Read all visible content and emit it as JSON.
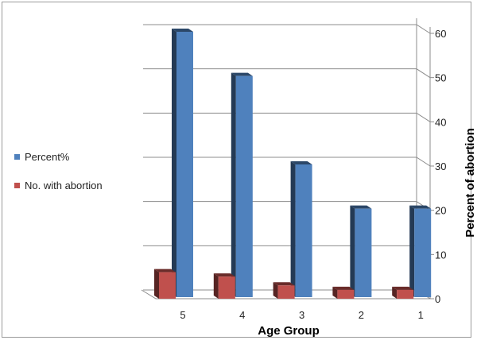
{
  "chart_data": {
    "type": "bar",
    "categories": [
      "5",
      "4",
      "3",
      "2",
      "1"
    ],
    "series": [
      {
        "name": "Percent%",
        "values": [
          60,
          50,
          30,
          20,
          20
        ],
        "color": "#4f81bd"
      },
      {
        "name": "No. with abortion",
        "values": [
          6,
          5,
          3,
          2,
          2
        ],
        "color": "#c0504d"
      }
    ],
    "xlabel": "Age Group",
    "ylabel": "Percent of abortion",
    "ylim": [
      0,
      60
    ],
    "yticks": [
      "0",
      "10",
      "20",
      "30",
      "40",
      "50",
      "60"
    ],
    "grid": true,
    "legend": "left",
    "style": "3d-clustered"
  }
}
